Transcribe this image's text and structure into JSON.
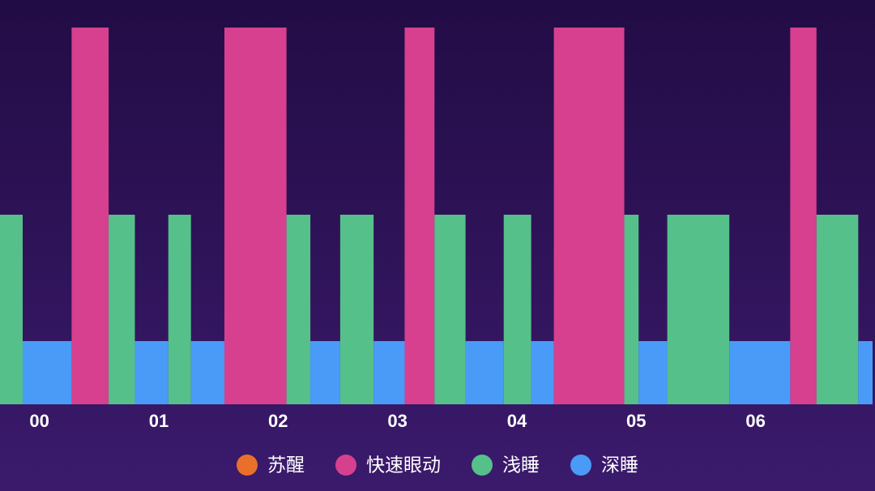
{
  "chart_data": {
    "type": "sleep-stages",
    "xlim": [
      -0.33,
      6.98
    ],
    "xticks": [
      {
        "value": 0,
        "label": "00"
      },
      {
        "value": 1,
        "label": "01"
      },
      {
        "value": 2,
        "label": "02"
      },
      {
        "value": 3,
        "label": "03"
      },
      {
        "value": 4,
        "label": "04"
      },
      {
        "value": 5,
        "label": "05"
      },
      {
        "value": 6,
        "label": "06"
      }
    ],
    "series": [
      {
        "name": "苏醒",
        "color": "#ea6f2a",
        "intervals": []
      },
      {
        "name": "快速眼动",
        "color": "#d6408f",
        "intervals": [
          [
            0.27,
            0.58
          ],
          [
            1.55,
            2.07
          ],
          [
            3.06,
            3.31
          ],
          [
            4.31,
            4.9
          ],
          [
            6.29,
            6.51
          ]
        ]
      },
      {
        "name": "浅睡",
        "color": "#56c08a",
        "intervals": [
          [
            -0.33,
            -0.14
          ],
          [
            0.58,
            0.8
          ],
          [
            1.08,
            1.27
          ],
          [
            2.07,
            2.27
          ],
          [
            2.52,
            2.8
          ],
          [
            3.31,
            3.57
          ],
          [
            3.89,
            4.12
          ],
          [
            4.9,
            5.02
          ],
          [
            5.26,
            5.78
          ],
          [
            6.51,
            6.86
          ]
        ]
      },
      {
        "name": "深睡",
        "color": "#4a9bf7",
        "intervals": [
          [
            -0.14,
            0.27
          ],
          [
            0.8,
            1.08
          ],
          [
            1.27,
            1.55
          ],
          [
            2.27,
            2.52
          ],
          [
            2.8,
            3.06
          ],
          [
            3.57,
            3.89
          ],
          [
            4.12,
            4.31
          ],
          [
            5.02,
            5.26
          ],
          [
            5.78,
            6.29
          ],
          [
            6.86,
            6.98
          ]
        ]
      }
    ]
  }
}
